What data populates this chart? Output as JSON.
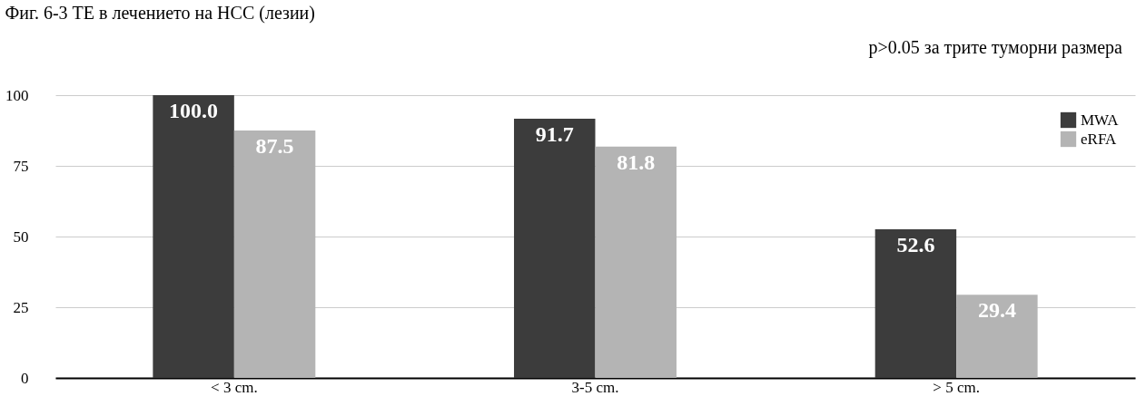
{
  "chart_data": {
    "type": "bar",
    "title": "Фиг. 6-3 TE в лечението на HCC (лезии)",
    "annotations": [
      "p>0.05 за трите туморни размера"
    ],
    "categories": [
      "< 3 cm.",
      "3-5 cm.",
      "> 5 cm."
    ],
    "series": [
      {
        "name": "MWA",
        "color": "#3c3c3c",
        "values": [
          100.0,
          91.7,
          52.6
        ],
        "value_labels": [
          "100.0",
          "91.7",
          "52.6"
        ]
      },
      {
        "name": "eRFA",
        "color": "#b4b4b4",
        "values": [
          87.5,
          81.8,
          29.4
        ],
        "value_labels": [
          "87.5",
          "81.8",
          "29.4"
        ]
      }
    ],
    "ylim": [
      0,
      100
    ],
    "yticks": [
      0,
      25,
      50,
      75,
      100
    ],
    "grid": "y",
    "legend": "top right"
  }
}
